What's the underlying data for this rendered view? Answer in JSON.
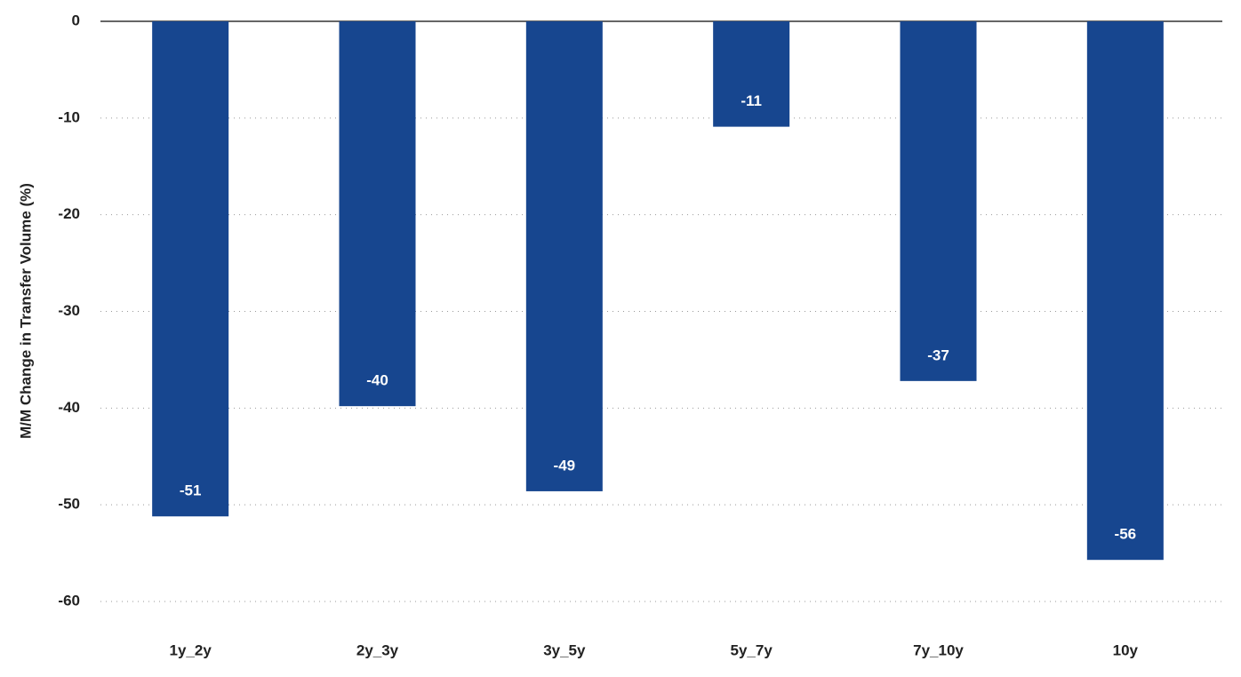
{
  "chart_data": {
    "type": "bar",
    "y_label": "M/M Change in Transfer Volume (%)",
    "categories": [
      "1y_2y",
      "2y_3y",
      "3y_5y",
      "5y_7y",
      "7y_10y",
      "10y"
    ],
    "values": [
      -51.2,
      -39.8,
      -48.6,
      -10.9,
      -37.2,
      -55.7
    ],
    "value_labels": [
      "-51",
      "-40",
      "-49",
      "-11",
      "-37",
      "-56"
    ],
    "color": "#17468f",
    "ylim": [
      -60,
      0
    ],
    "yticks": [
      0,
      -10,
      -20,
      -30,
      -40,
      -50,
      -60
    ],
    "grid": true
  }
}
